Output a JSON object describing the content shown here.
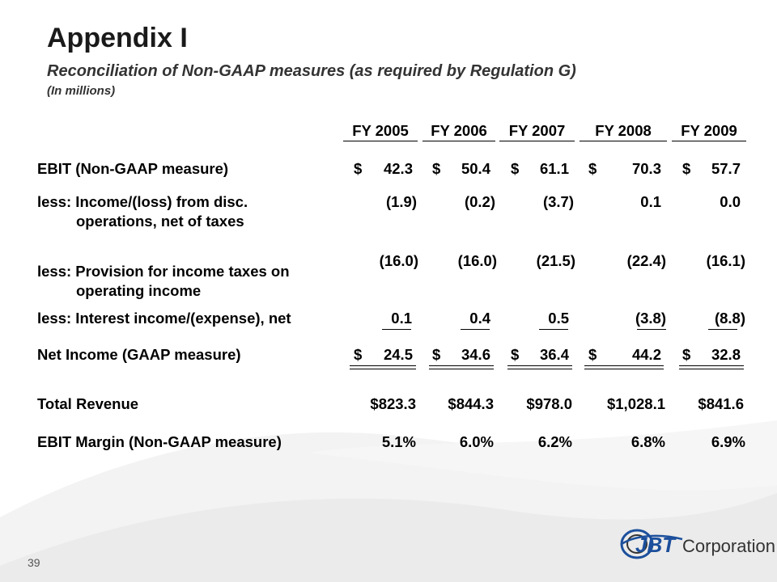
{
  "slide": {
    "title": "Appendix I",
    "subtitle": "Reconciliation of Non-GAAP measures (as required by Regulation G)",
    "units": "(In millions)",
    "page_number": "39"
  },
  "table": {
    "columns": [
      "FY 2005",
      "FY 2006",
      "FY 2007",
      "FY 2008",
      "FY 2009"
    ],
    "rows": [
      {
        "label": "EBIT (Non-GAAP measure)",
        "cells": [
          {
            "cur": "$",
            "num": "42.3"
          },
          {
            "cur": "$",
            "num": "50.4"
          },
          {
            "cur": "$",
            "num": "61.1"
          },
          {
            "cur": "$",
            "num": "70.3"
          },
          {
            "cur": "$",
            "num": "57.7"
          }
        ]
      },
      {
        "label": "less: Income/(loss) from disc.",
        "label_cont": "operations, net of taxes",
        "cells": [
          {
            "cur": "",
            "num": "(1.9)"
          },
          {
            "cur": "",
            "num": "(0.2)"
          },
          {
            "cur": "",
            "num": "(3.7)"
          },
          {
            "cur": "",
            "num": "0.1"
          },
          {
            "cur": "",
            "num": "0.0"
          }
        ]
      },
      {
        "label": "less: Provision for income taxes on",
        "label_cont": "operating income",
        "cells": [
          {
            "cur": "",
            "num": "(16.0)"
          },
          {
            "cur": "",
            "num": "(16.0)"
          },
          {
            "cur": "",
            "num": "(21.5)"
          },
          {
            "cur": "",
            "num": "(22.4)"
          },
          {
            "cur": "",
            "num": "(16.1)"
          }
        ]
      },
      {
        "label": "less: Interest income/(expense), net",
        "cells": [
          {
            "cur": "",
            "num": "0.1"
          },
          {
            "cur": "",
            "num": "0.4"
          },
          {
            "cur": "",
            "num": "0.5"
          },
          {
            "cur": "",
            "num": "(3.8)"
          },
          {
            "cur": "",
            "num": "(8.8)"
          }
        ]
      },
      {
        "label": "Net Income (GAAP measure)",
        "cells": [
          {
            "cur": "$",
            "num": "24.5"
          },
          {
            "cur": "$",
            "num": "34.6"
          },
          {
            "cur": "$",
            "num": "36.4"
          },
          {
            "cur": "$",
            "num": "44.2"
          },
          {
            "cur": "$",
            "num": "32.8"
          }
        ]
      },
      {
        "label": "Total Revenue",
        "cells": [
          {
            "cur": "",
            "num": "$823.3"
          },
          {
            "cur": "",
            "num": "$844.3"
          },
          {
            "cur": "",
            "num": "$978.0"
          },
          {
            "cur": "",
            "num": "$1,028.1"
          },
          {
            "cur": "",
            "num": "$841.6"
          }
        ]
      },
      {
        "label": "EBIT Margin (Non-GAAP measure)",
        "cells": [
          {
            "cur": "",
            "num": "5.1%"
          },
          {
            "cur": "",
            "num": "6.0%"
          },
          {
            "cur": "",
            "num": "6.2%"
          },
          {
            "cur": "",
            "num": "6.8%"
          },
          {
            "cur": "",
            "num": "6.9%"
          }
        ]
      }
    ]
  },
  "logo": {
    "mark": "JBT",
    "text": "Corporation",
    "icon": "jbt-logo-icon",
    "colors": {
      "blue": "#1c4f9c",
      "grey": "#333333"
    }
  },
  "background": {
    "wave_color": "#eeeeee"
  }
}
